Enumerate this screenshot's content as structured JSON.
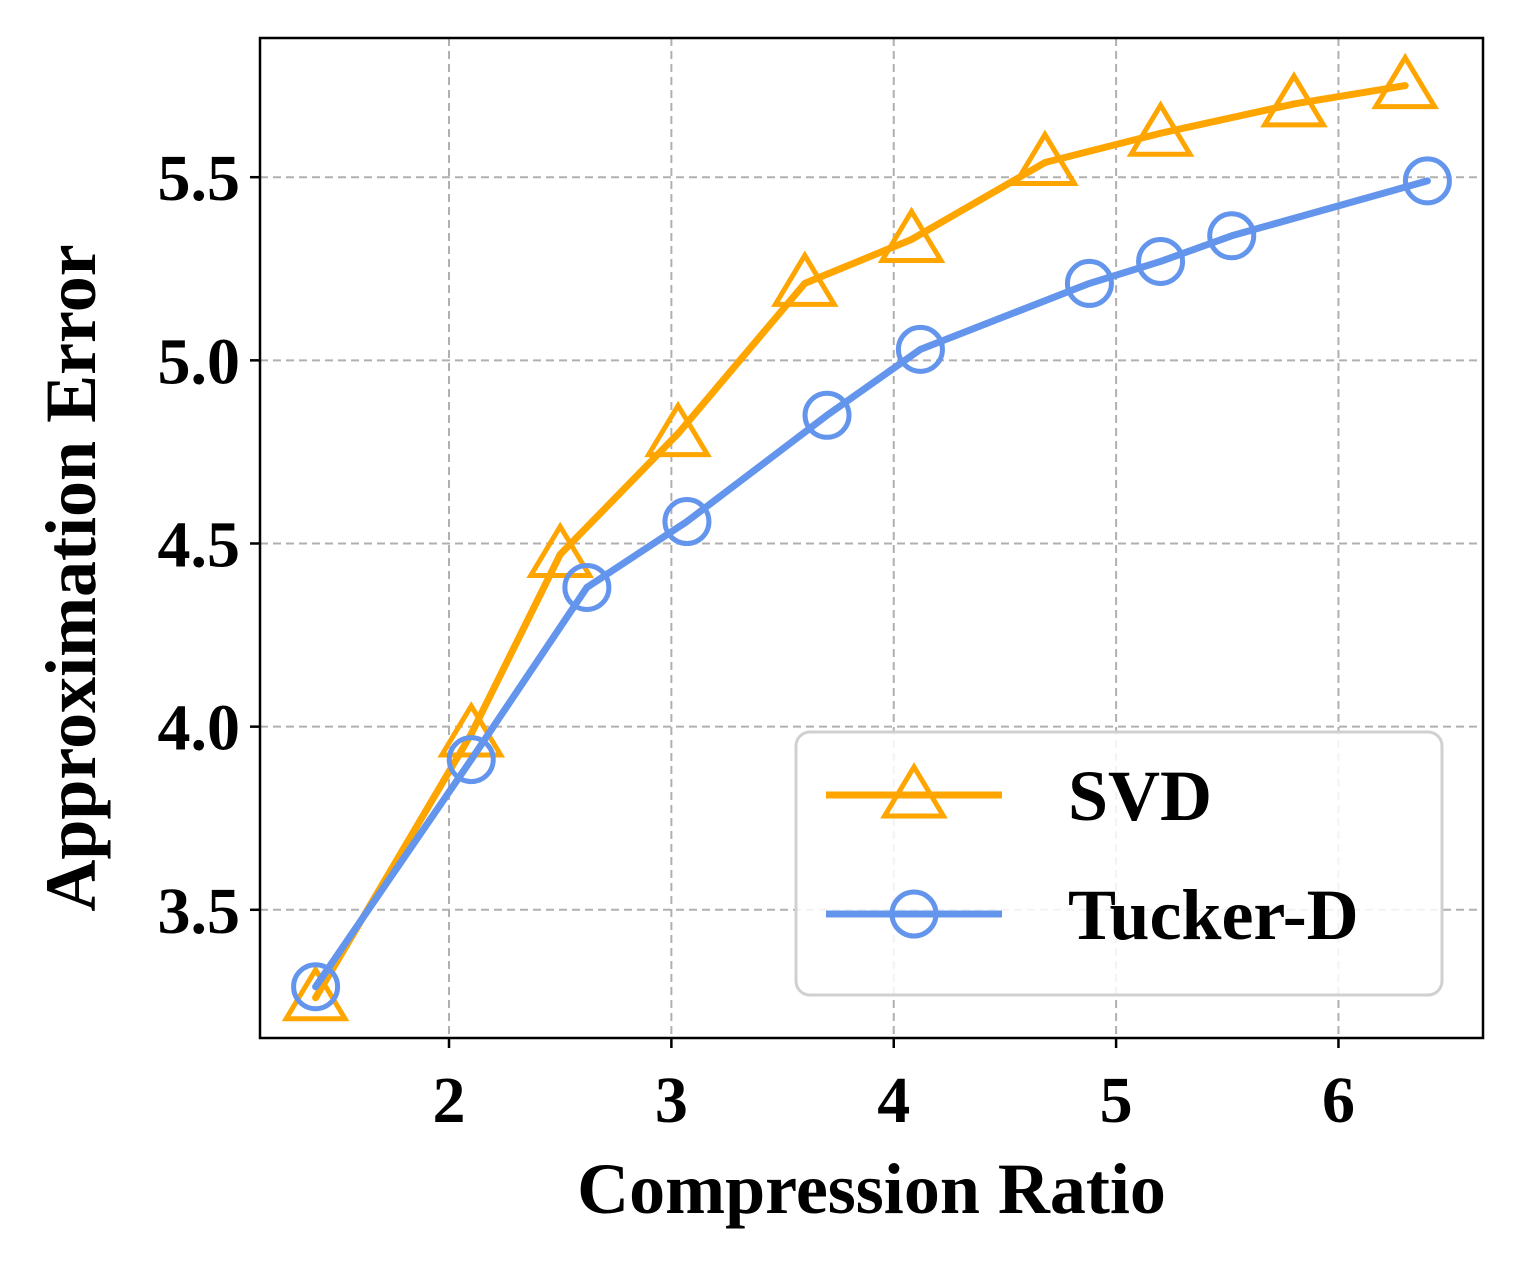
{
  "chart_data": {
    "type": "line",
    "title": "",
    "xlabel": "Compression Ratio",
    "ylabel": "Approximation Error",
    "xlim": [
      1.15,
      6.65
    ],
    "ylim": [
      3.15,
      5.88
    ],
    "xticks": [
      2,
      3,
      4,
      5,
      6
    ],
    "xtick_labels": [
      "2",
      "3",
      "4",
      "5",
      "6"
    ],
    "yticks": [
      3.5,
      4.0,
      4.5,
      5.0,
      5.5
    ],
    "ytick_labels": [
      "3.5",
      "4.0",
      "4.5",
      "5.0",
      "5.5"
    ],
    "grid": true,
    "legend_position": "lower-right",
    "series": [
      {
        "name": "SVD",
        "color": "#FFA500",
        "marker": "triangle",
        "x": [
          1.4,
          2.1,
          2.5,
          3.03,
          3.6,
          4.08,
          4.68,
          5.2,
          5.8,
          6.3
        ],
        "y": [
          3.26,
          3.98,
          4.47,
          4.8,
          5.21,
          5.33,
          5.54,
          5.62,
          5.7,
          5.75
        ]
      },
      {
        "name": "Tucker-D",
        "color": "#6495ED",
        "marker": "circle",
        "x": [
          1.4,
          2.1,
          2.62,
          3.07,
          3.7,
          4.12,
          4.88,
          5.2,
          5.52,
          6.4
        ],
        "y": [
          3.29,
          3.91,
          4.38,
          4.56,
          4.85,
          5.03,
          5.21,
          5.27,
          5.34,
          5.49
        ]
      }
    ]
  }
}
